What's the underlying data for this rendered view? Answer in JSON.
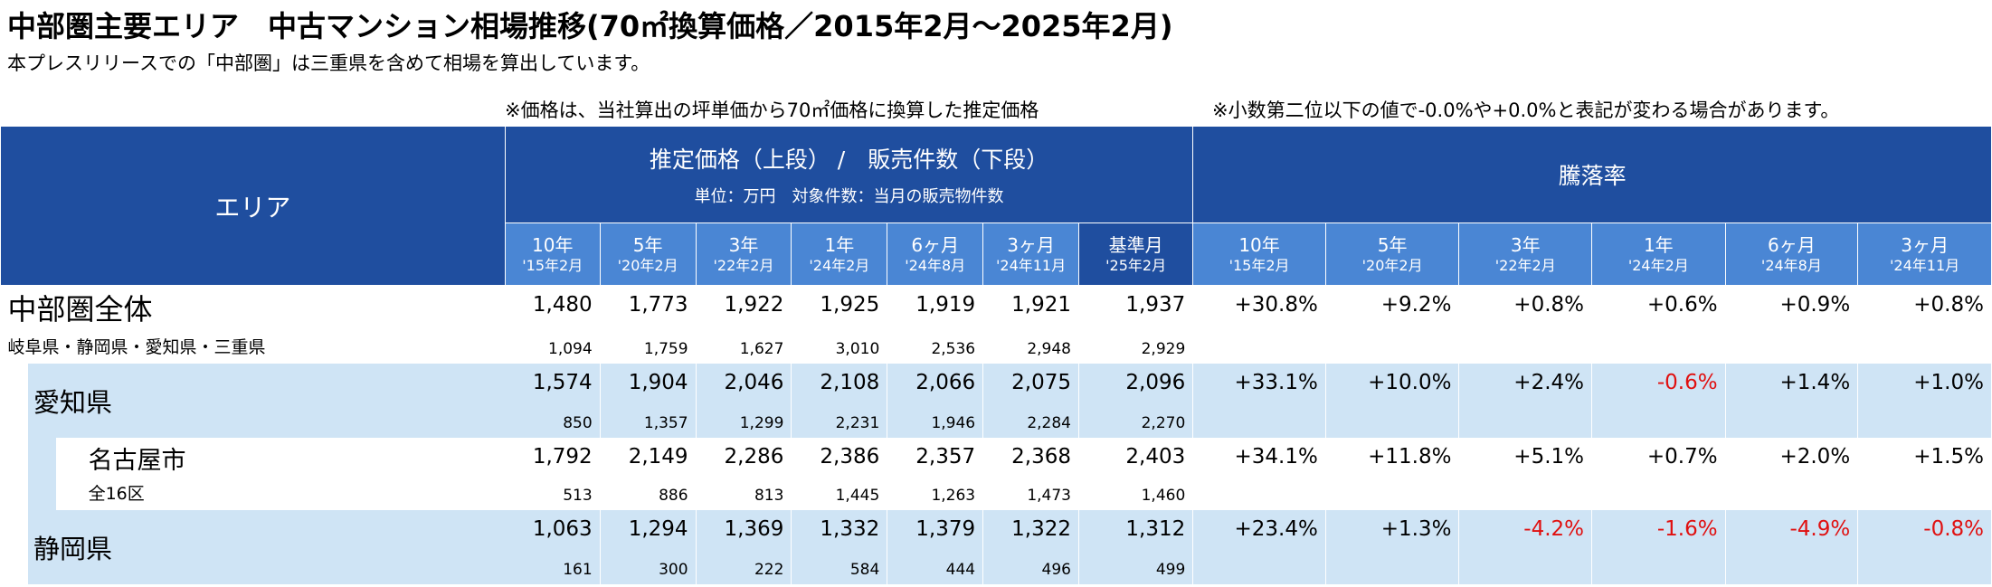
{
  "title": "中部圏主要エリア　中古マンション相場推移(70㎡換算価格／2015年2月～2025年2月)",
  "subtitle": "本プレスリリースでの「中部圏」は三重県を含めて相場を算出しています。",
  "note_price": "※価格は、当社算出の坪単価から70㎡価格に換算した推定価格",
  "note_rounding": "※小数第二位以下の値で-0.0%や+0.0%と表記が変わる場合があります。",
  "header": {
    "area": "エリア",
    "price_group": "推定価格（上段） /　販売件数（下段）",
    "price_unit": "単位：万円　対象件数：当月の販売物件数",
    "change_group": "騰落率",
    "price_cols": [
      {
        "label": "10年",
        "date": "'15年2月"
      },
      {
        "label": "5年",
        "date": "'20年2月"
      },
      {
        "label": "3年",
        "date": "'22年2月"
      },
      {
        "label": "1年",
        "date": "'24年2月"
      },
      {
        "label": "6ヶ月",
        "date": "'24年8月"
      },
      {
        "label": "3ヶ月",
        "date": "'24年11月"
      },
      {
        "label": "基準月",
        "date": "'25年2月"
      }
    ],
    "change_cols": [
      {
        "label": "10年",
        "date": "'15年2月"
      },
      {
        "label": "5年",
        "date": "'20年2月"
      },
      {
        "label": "3年",
        "date": "'22年2月"
      },
      {
        "label": "1年",
        "date": "'24年2月"
      },
      {
        "label": "6ヶ月",
        "date": "'24年8月"
      },
      {
        "label": "3ヶ月",
        "date": "'24年11月"
      }
    ]
  },
  "rows": [
    {
      "name": "中部圏全体",
      "sub": "岐阜県・静岡県・愛知県・三重県",
      "prices": [
        "1,480",
        "1,773",
        "1,922",
        "1,925",
        "1,919",
        "1,921",
        "1,937"
      ],
      "counts": [
        "1,094",
        "1,759",
        "1,627",
        "3,010",
        "2,536",
        "2,948",
        "2,929"
      ],
      "changes": [
        "+30.8%",
        "+9.2%",
        "+0.8%",
        "+0.6%",
        "+0.9%",
        "+0.8%"
      ]
    },
    {
      "name": "愛知県",
      "sub": "",
      "prices": [
        "1,574",
        "1,904",
        "2,046",
        "2,108",
        "2,066",
        "2,075",
        "2,096"
      ],
      "counts": [
        "850",
        "1,357",
        "1,299",
        "2,231",
        "1,946",
        "2,284",
        "2,270"
      ],
      "changes": [
        "+33.1%",
        "+10.0%",
        "+2.4%",
        "-0.6%",
        "+1.4%",
        "+1.0%"
      ]
    },
    {
      "name": "名古屋市",
      "sub": "全16区",
      "prices": [
        "1,792",
        "2,149",
        "2,286",
        "2,386",
        "2,357",
        "2,368",
        "2,403"
      ],
      "counts": [
        "513",
        "886",
        "813",
        "1,445",
        "1,263",
        "1,473",
        "1,460"
      ],
      "changes": [
        "+34.1%",
        "+11.8%",
        "+5.1%",
        "+0.7%",
        "+2.0%",
        "+1.5%"
      ]
    },
    {
      "name": "静岡県",
      "sub": "",
      "prices": [
        "1,063",
        "1,294",
        "1,369",
        "1,332",
        "1,379",
        "1,322",
        "1,312"
      ],
      "counts": [
        "161",
        "300",
        "222",
        "584",
        "444",
        "496",
        "499"
      ],
      "changes": [
        "+23.4%",
        "+1.3%",
        "-4.2%",
        "-1.6%",
        "-4.9%",
        "-0.8%"
      ]
    }
  ]
}
